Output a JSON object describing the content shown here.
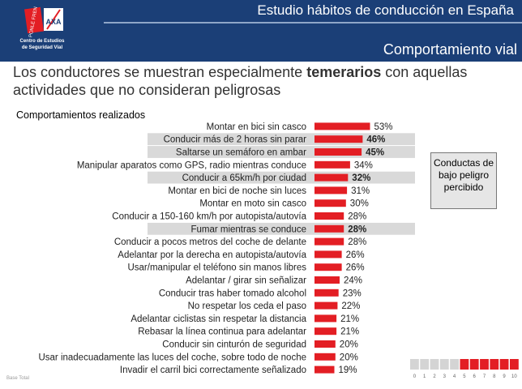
{
  "header": {
    "title": "Estudio hábitos de conducción en España",
    "subtitle": "Comportamiento vial",
    "logo_text": "PONLE FRENO",
    "axa_text": "AXA",
    "centro_line1": "Centro de Estudios",
    "centro_line2": "de Seguridad Vial"
  },
  "intro": {
    "part1": "Los conductores se muestran especialmente ",
    "bold": "temerarios",
    "part2": " con aquellas actividades que no consideran peligrosas"
  },
  "section_label": "Comportamientos realizados",
  "legend_box": "Conductas de bajo peligro percibido",
  "footer": "Base Total",
  "colors": {
    "bar": "#e31e24",
    "highlight": "#d9d9d9",
    "header": "#1b3f77"
  },
  "scale": {
    "labels": [
      "0",
      "1",
      "2",
      "3",
      "4",
      "5",
      "6",
      "7",
      "8",
      "9",
      "10"
    ],
    "filled_from": 5
  },
  "chart_data": {
    "type": "bar",
    "orientation": "horizontal",
    "title": "Comportamientos realizados",
    "categories": [
      "Montar en bici sin casco",
      "Conducir más de 2 horas sin parar",
      "Saltarse un semáforo en ambar",
      "Manipular aparatos como GPS, radio mientras conduce",
      "Conducir a 65km/h por ciudad",
      "Montar en bici de noche sin luces",
      "Montar en moto sin casco",
      "Conducir a 150-160 km/h por autopista/autovía",
      "Fumar mientras se conduce",
      "Conducir a pocos metros del coche de delante",
      "Adelantar por la derecha en autopista/autovía",
      "Usar/manipular el teléfono sin manos libres",
      "Adelantar / girar sin señalizar",
      "Conducir tras haber tomado alcohol",
      "No respetar los ceda el paso",
      "Adelantar ciclistas sin respetar la distancia",
      "Rebasar la línea continua para adelantar",
      "Conducir sin cinturón de seguridad",
      "Usar inadecuadamente las luces del coche, sobre todo de noche",
      "Invadir el carril bici correctamente señalizado"
    ],
    "values": [
      53,
      46,
      45,
      34,
      32,
      31,
      30,
      28,
      28,
      28,
      26,
      26,
      24,
      23,
      22,
      21,
      21,
      20,
      20,
      19
    ],
    "value_labels": [
      "53%",
      "46%",
      "45%",
      "34%",
      "32%",
      "31%",
      "30%",
      "28%",
      "28%",
      "28%",
      "26%",
      "26%",
      "24%",
      "23%",
      "22%",
      "21%",
      "21%",
      "20%",
      "20%",
      "19%"
    ],
    "highlighted": [
      false,
      true,
      true,
      false,
      true,
      false,
      false,
      false,
      true,
      false,
      false,
      false,
      false,
      false,
      false,
      false,
      false,
      false,
      false,
      false
    ],
    "unit": "%"
  }
}
